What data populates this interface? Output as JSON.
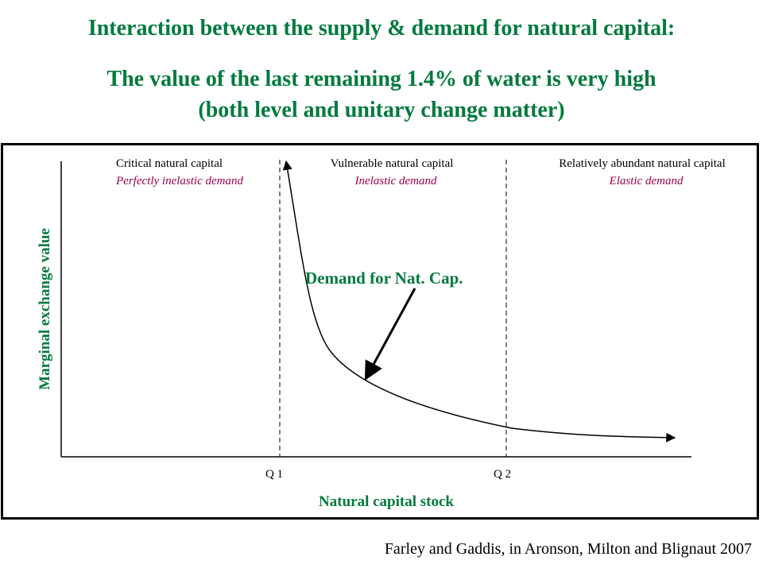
{
  "titles": {
    "line1": "Interaction between the supply & demand for natural capital:",
    "line2": "The value of the last remaining 1.4% of water is very high",
    "line3": "(both level and unitary change matter)"
  },
  "chart_data": {
    "type": "line",
    "xlabel": "Natural capital stock",
    "ylabel": "Marginal exchange value",
    "regions": [
      {
        "name": "Critical natural capital",
        "demand": "Perfectly inelastic demand"
      },
      {
        "name": "Vulnerable natural capital",
        "demand": "Inelastic demand"
      },
      {
        "name": "Relatively abundant natural capital",
        "demand": "Elastic demand"
      }
    ],
    "thresholds": [
      "Q 1",
      "Q 2"
    ],
    "series": [
      {
        "values_shape": "steeply declining near Q 1, flattening toward the right"
      }
    ],
    "annotation": "Demand for Nat. Cap.",
    "colors": {
      "title": "#007a3d",
      "axis_label": "#007a3d",
      "demand_type": "#99004d",
      "line": "#000000"
    }
  },
  "citation": "Farley and Gaddis, in Aronson, Milton and Blignaut 2007"
}
